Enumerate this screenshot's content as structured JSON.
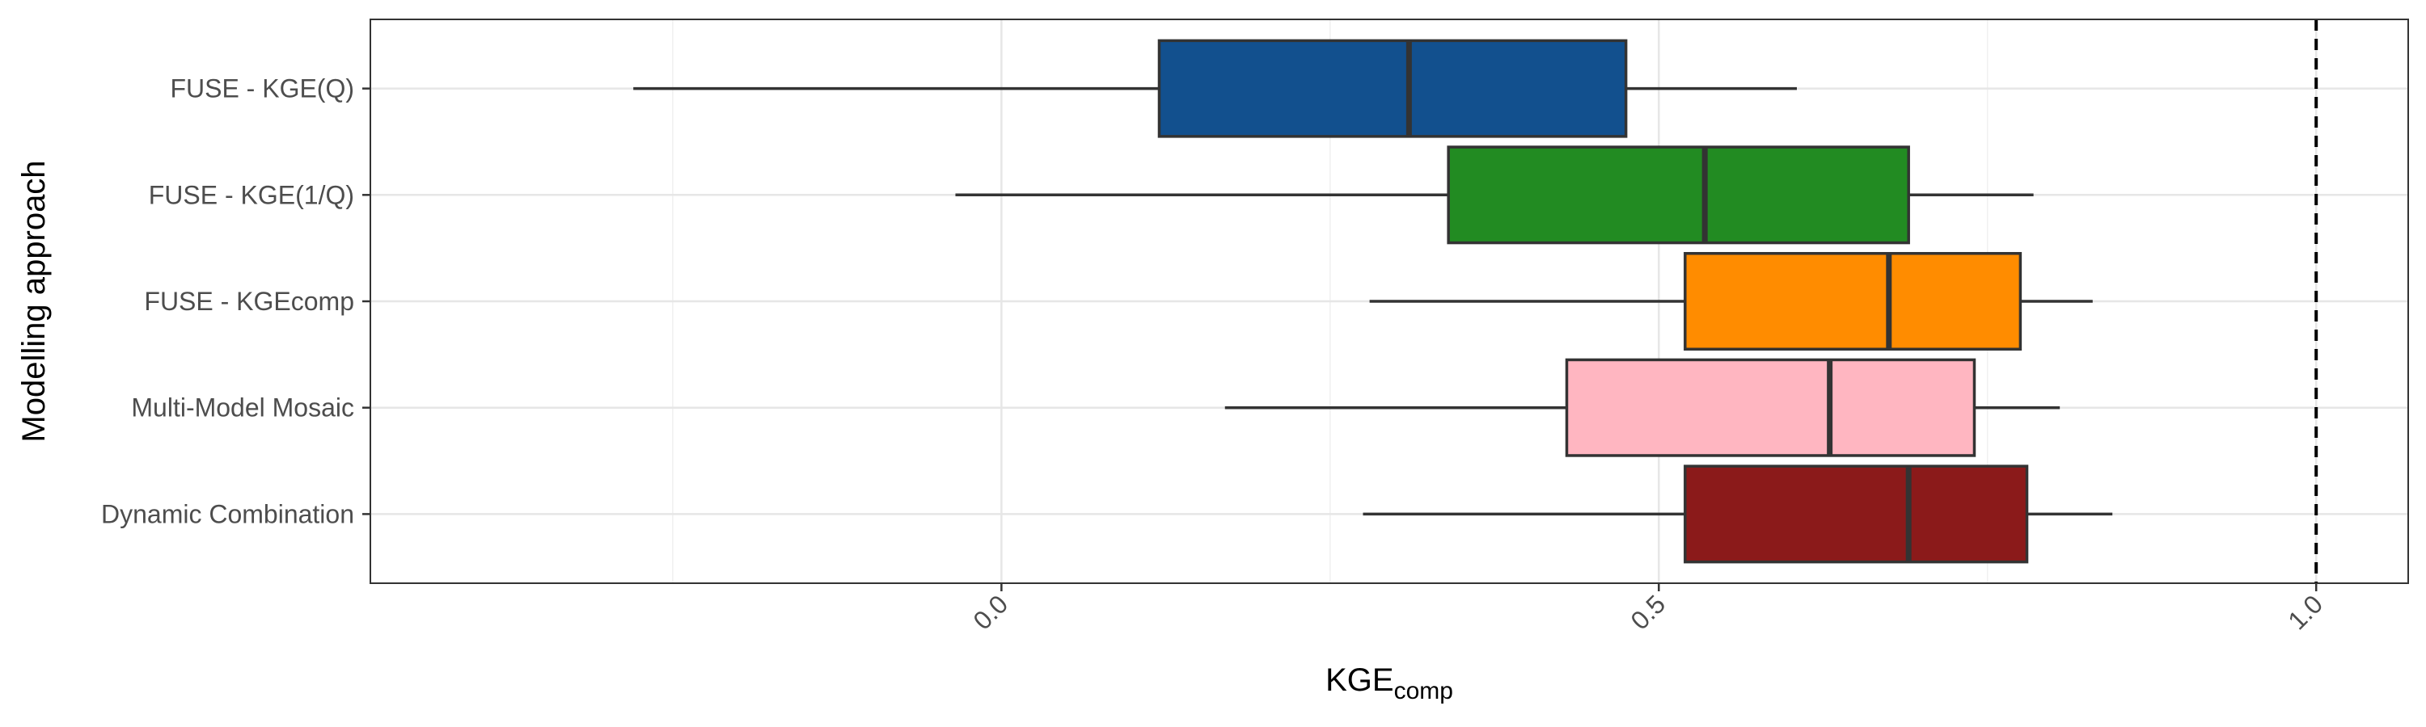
{
  "chart_data": {
    "type": "boxplot",
    "orientation": "horizontal",
    "title": "",
    "xlabel_main": "KGE",
    "xlabel_sub": "comp",
    "ylabel": "Modelling approach",
    "xlim": [
      -0.48,
      1.07
    ],
    "xticks": [
      0.0,
      0.5,
      1.0
    ],
    "xtick_labels": [
      "0.0",
      "0.5",
      "1.0"
    ],
    "reference_line": {
      "x": 1.0,
      "style": "dashed",
      "color": "#000000"
    },
    "grid": true,
    "legend": "none",
    "series": [
      {
        "name": "FUSE - KGE(Q)",
        "color": "#12508E",
        "min": -0.28,
        "q1": 0.12,
        "median": 0.31,
        "q3": 0.475,
        "max": 0.605
      },
      {
        "name": "FUSE - KGE(1/Q)",
        "color": "#228B22",
        "min": -0.035,
        "q1": 0.34,
        "median": 0.535,
        "q3": 0.69,
        "max": 0.785
      },
      {
        "name": "FUSE - KGEcomp",
        "color": "#FF8C00",
        "min": 0.28,
        "q1": 0.52,
        "median": 0.675,
        "q3": 0.775,
        "max": 0.83
      },
      {
        "name": "Multi-Model Mosaic",
        "color": "#FFB6C1",
        "min": 0.17,
        "q1": 0.43,
        "median": 0.63,
        "q3": 0.74,
        "max": 0.805
      },
      {
        "name": "Dynamic Combination",
        "color": "#8B1A1A",
        "min": 0.275,
        "q1": 0.52,
        "median": 0.69,
        "q3": 0.78,
        "max": 0.845
      }
    ]
  }
}
